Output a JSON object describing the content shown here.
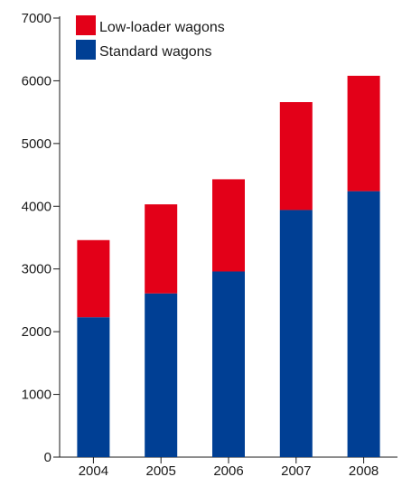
{
  "chart_data": {
    "type": "bar",
    "stacked": true,
    "categories": [
      "2004",
      "2005",
      "2006",
      "2007",
      "2008"
    ],
    "series": [
      {
        "name": "Standard wagons",
        "color": "#003f94",
        "values": [
          2230,
          2610,
          2960,
          3940,
          4240
        ]
      },
      {
        "name": "Low-loader wagons",
        "color": "#e30018",
        "values": [
          1230,
          1420,
          1470,
          1720,
          1840
        ]
      }
    ],
    "ylim": [
      0,
      7000
    ],
    "yticks": [
      "0",
      "1000",
      "2000",
      "3000",
      "4000",
      "5000",
      "6000",
      "7000"
    ],
    "legend": {
      "position": "top-left",
      "items": [
        {
          "label": "Low-loader wagons",
          "color": "#e30018"
        },
        {
          "label": "Standard wagons",
          "color": "#003f94"
        }
      ]
    },
    "grid": false,
    "title": "",
    "xlabel": "",
    "ylabel": ""
  }
}
